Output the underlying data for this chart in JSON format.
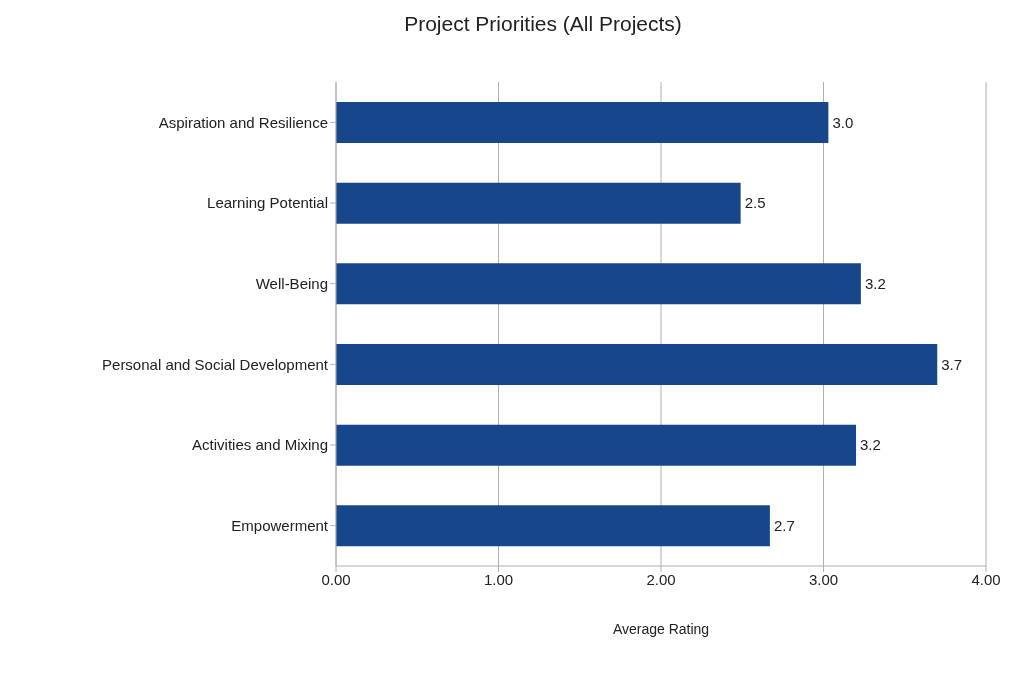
{
  "chart_data": {
    "type": "bar",
    "orientation": "horizontal",
    "title": "Project Priorities (All Projects)",
    "xlabel": "Average Rating",
    "categories": [
      "Aspiration and Resilience",
      "Learning Potential",
      "Well-Being",
      "Personal and Social Development",
      "Activities and Mixing",
      "Empowerment"
    ],
    "values": [
      3.03,
      2.49,
      3.23,
      3.7,
      3.2,
      2.67
    ],
    "value_labels": [
      "3.0",
      "2.5",
      "3.2",
      "3.7",
      "3.2",
      "2.7"
    ],
    "color": "#17478a",
    "xlim": [
      0,
      4
    ],
    "xticks": [
      {
        "value": 0,
        "label": "0.00"
      },
      {
        "value": 1,
        "label": "1.00"
      },
      {
        "value": 2,
        "label": "2.00"
      },
      {
        "value": 3,
        "label": "3.00"
      },
      {
        "value": 4,
        "label": "4.00"
      }
    ],
    "grid": "x"
  }
}
